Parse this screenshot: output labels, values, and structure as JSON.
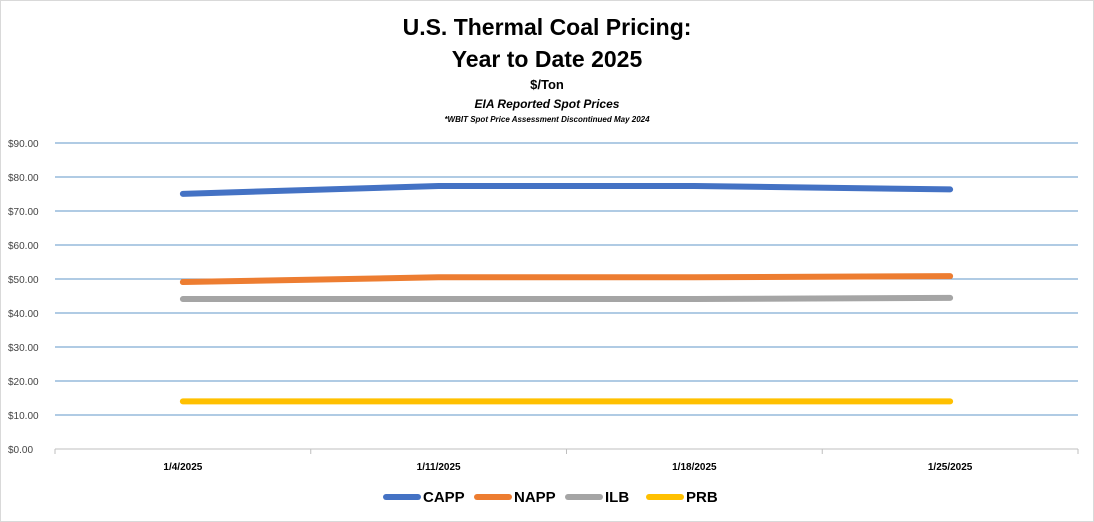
{
  "chart_data": {
    "type": "line",
    "title_line1": "U.S. Thermal Coal Pricing:",
    "title_line2": "Year to Date 2025",
    "unit_label": "$/Ton",
    "subtitle": "EIA Reported Spot Prices",
    "note": "*WBIT Spot Price Assessment Discontinued May 2024",
    "categories": [
      "1/4/2025",
      "1/11/2025",
      "1/18/2025",
      "1/25/2025"
    ],
    "y_ticks": [
      "$0.00",
      "$10.00",
      "$20.00",
      "$30.00",
      "$40.00",
      "$50.00",
      "$60.00",
      "$70.00",
      "$80.00",
      "$90.00"
    ],
    "ylim": [
      0,
      90
    ],
    "grid": true,
    "legend_position": "bottom",
    "series": [
      {
        "name": "CAPP",
        "color": "#4472c4",
        "values": [
          75.05,
          77.35,
          77.35,
          76.35
        ]
      },
      {
        "name": "NAPP",
        "color": "#ed7d31",
        "values": [
          49.1,
          50.5,
          50.5,
          50.85
        ]
      },
      {
        "name": "ILB",
        "color": "#a5a5a5",
        "values": [
          44.1,
          44.1,
          44.1,
          44.45
        ]
      },
      {
        "name": "PRB",
        "color": "#ffc000",
        "values": [
          14.0,
          14.0,
          14.0,
          14.0
        ]
      }
    ]
  }
}
